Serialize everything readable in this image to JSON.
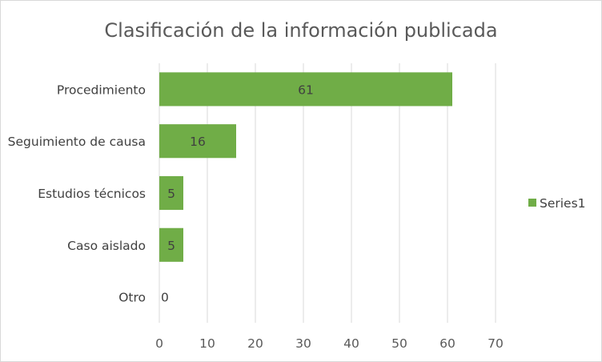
{
  "chart_data": {
    "type": "bar",
    "orientation": "horizontal",
    "title": "Clasificación de la información publicada",
    "categories": [
      "Procedimiento",
      "Seguimiento de causa",
      "Estudios técnicos",
      "Caso aislado",
      "Otro"
    ],
    "series": [
      {
        "name": "Series1",
        "values": [
          61,
          16,
          5,
          5,
          0
        ],
        "color": "#70ad47"
      }
    ],
    "xlim": [
      0,
      70
    ],
    "xticks": [
      0,
      10,
      20,
      30,
      40,
      50,
      60,
      70
    ],
    "xlabel": "",
    "ylabel": "",
    "grid": "vertical",
    "legend": "right",
    "data_labels": true
  }
}
